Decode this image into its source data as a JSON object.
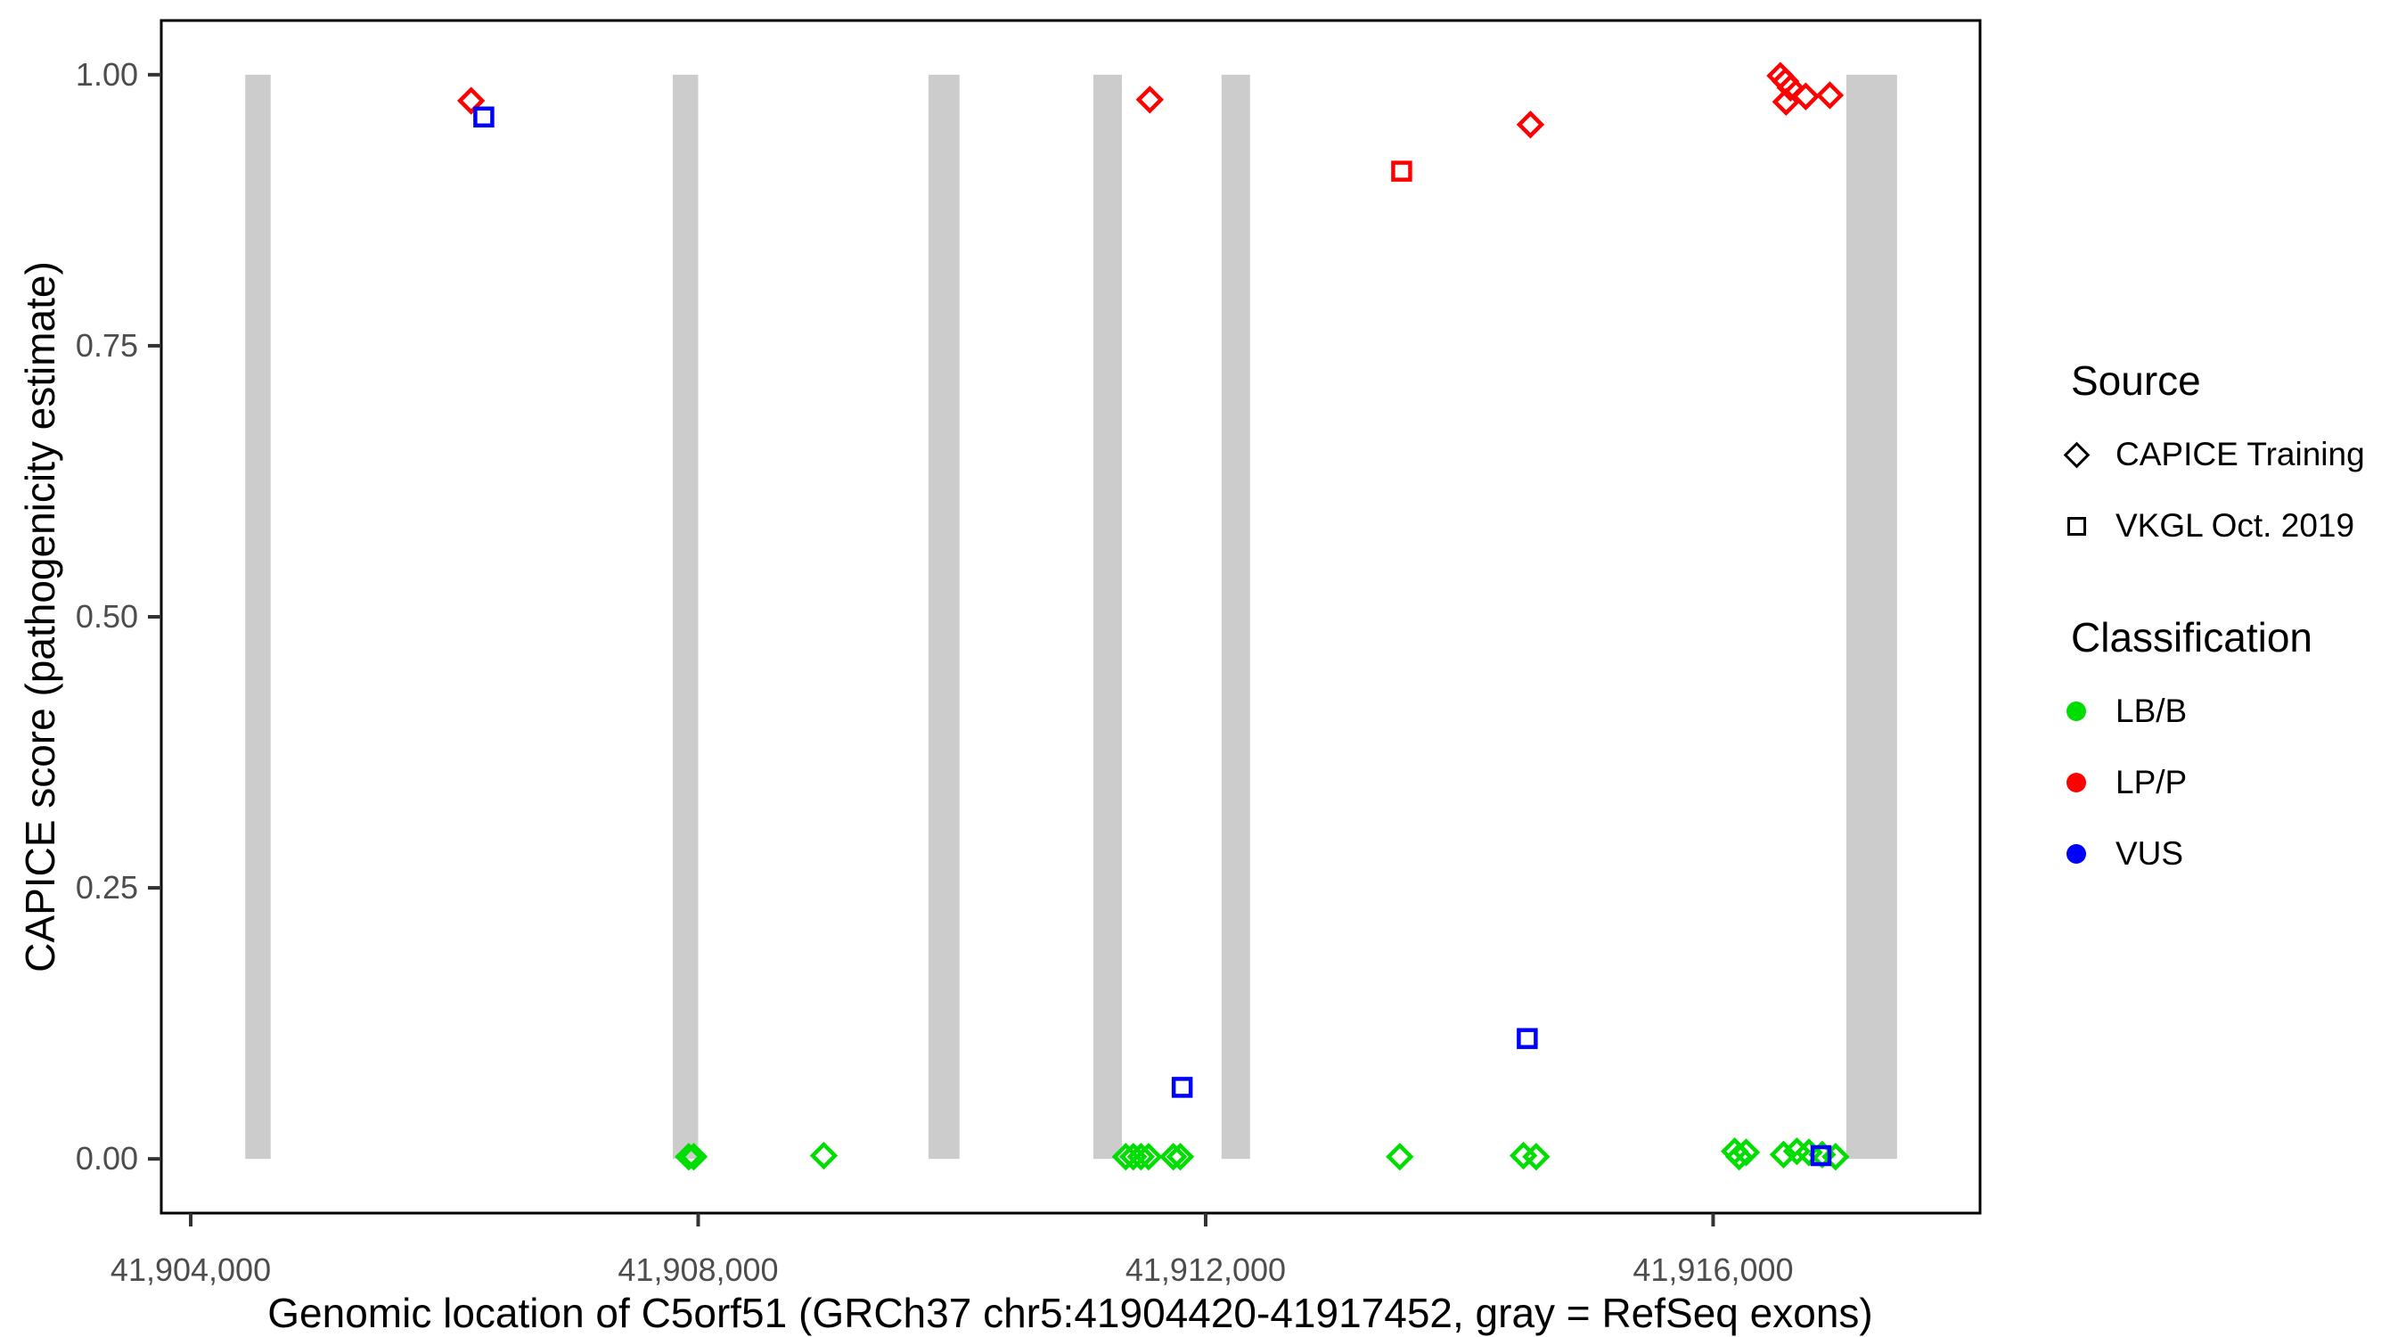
{
  "chart_data": {
    "type": "scatter",
    "title": "",
    "xlabel": "Genomic location of C5orf51 (GRCh37 chr5:41904420-41917452, gray = RefSeq exons)",
    "ylabel": "CAPICE score (pathogenicity estimate)",
    "xlim": [
      41903768,
      41918104
    ],
    "ylim": [
      -0.05,
      1.05
    ],
    "grid": false,
    "panel_border_color": "#000000",
    "tick_color": "#333333",
    "tick_label_color": "#4d4d4d",
    "x_ticks": {
      "values": [
        41904000,
        41908000,
        41912000,
        41916000
      ],
      "labels": [
        "41,904,000",
        "41,908,000",
        "41,912,000",
        "41,916,000"
      ]
    },
    "y_ticks": {
      "values": [
        0,
        0.25,
        0.5,
        0.75,
        1.0
      ],
      "labels": [
        "0.00",
        "0.25",
        "0.50",
        "0.75",
        "1.00"
      ]
    },
    "exon_color": "#cccccc",
    "exons": [
      [
        41904430,
        41904630
      ],
      [
        41907800,
        41908000
      ],
      [
        41909815,
        41910060
      ],
      [
        41911115,
        41911340
      ],
      [
        41912125,
        41912350
      ],
      [
        41917050,
        41917450
      ]
    ],
    "series": [
      {
        "name": "CAPICE Training / LB/B",
        "source": "CAPICE Training",
        "classification": "LB/B",
        "marker": "diamond",
        "color": "#00dd00",
        "points": [
          [
            41907925,
            0.002
          ],
          [
            41907965,
            0.002
          ],
          [
            41908990,
            0.003
          ],
          [
            41911370,
            0.002
          ],
          [
            41911430,
            0.002
          ],
          [
            41911490,
            0.002
          ],
          [
            41911550,
            0.002
          ],
          [
            41911745,
            0.002
          ],
          [
            41911800,
            0.002
          ],
          [
            41913530,
            0.002
          ],
          [
            41914505,
            0.003
          ],
          [
            41914605,
            0.002
          ],
          [
            41916170,
            0.007
          ],
          [
            41916205,
            0.002
          ],
          [
            41916260,
            0.006
          ],
          [
            41916555,
            0.004
          ],
          [
            41916660,
            0.007
          ],
          [
            41916755,
            0.006
          ],
          [
            41916860,
            0.004
          ],
          [
            41916965,
            0.002
          ]
        ]
      },
      {
        "name": "CAPICE Training / LP/P",
        "source": "CAPICE Training",
        "classification": "LP/P",
        "marker": "diamond",
        "color": "#ff0000",
        "points": [
          [
            41906210,
            0.976
          ],
          [
            41911560,
            0.977
          ],
          [
            41914560,
            0.954
          ],
          [
            41916530,
            0.999
          ],
          [
            41916570,
            0.994
          ],
          [
            41916610,
            0.988
          ],
          [
            41916575,
            0.975
          ],
          [
            41916730,
            0.98
          ],
          [
            41916920,
            0.981
          ]
        ]
      },
      {
        "name": "VKGL Oct. 2019 / LP/P",
        "source": "VKGL Oct. 2019",
        "classification": "LP/P",
        "marker": "square",
        "color": "#ff0000",
        "points": [
          [
            41913545,
            0.911
          ]
        ]
      },
      {
        "name": "VKGL Oct. 2019 / VUS",
        "source": "VKGL Oct. 2019",
        "classification": "VUS",
        "marker": "square",
        "color": "#0000ff",
        "points": [
          [
            41906310,
            0.961
          ],
          [
            41911815,
            0.066
          ],
          [
            41914535,
            0.111
          ],
          [
            41916850,
            0.003
          ]
        ]
      }
    ]
  },
  "legend": {
    "source": {
      "title": "Source",
      "items": [
        {
          "label": "CAPICE Training",
          "marker": "diamond"
        },
        {
          "label": "VKGL Oct. 2019",
          "marker": "square"
        }
      ]
    },
    "classification": {
      "title": "Classification",
      "items": [
        {
          "label": "LB/B",
          "color": "#00dd00"
        },
        {
          "label": "LP/P",
          "color": "#ff0000"
        },
        {
          "label": "VUS",
          "color": "#0000ff"
        }
      ]
    }
  }
}
